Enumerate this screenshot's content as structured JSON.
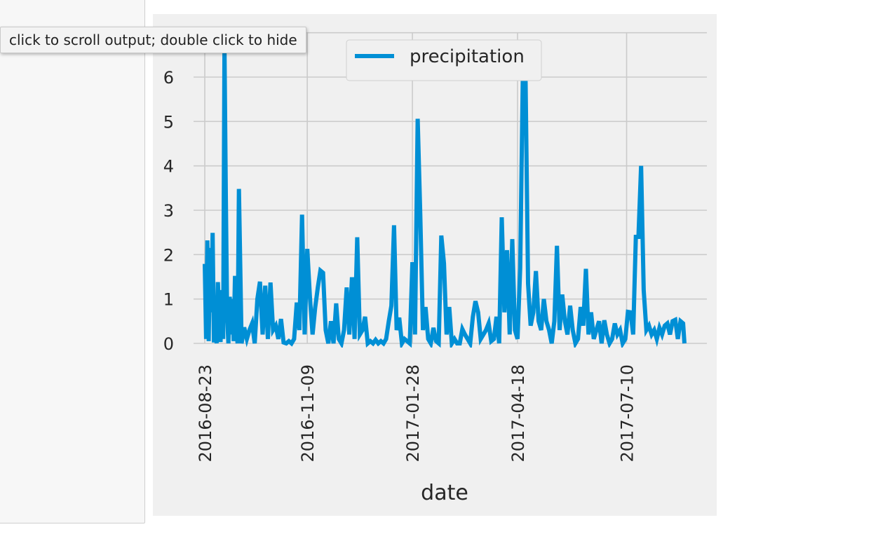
{
  "tooltip": {
    "text": "click to scroll output; double click to hide"
  },
  "colors": {
    "series": "#008fd5",
    "grid": "#cbcbcb",
    "figure_bg": "#f0f0f0",
    "text": "#262626"
  },
  "chart_data": {
    "type": "line",
    "xlabel": "date",
    "ylabel": "",
    "ylim": [
      0,
      7
    ],
    "xlim": [
      "2016-08-23",
      "2017-08-23"
    ],
    "yticks": [
      0,
      1,
      2,
      3,
      4,
      5,
      6,
      7
    ],
    "xticks": [
      "2016-08-23",
      "2016-11-09",
      "2017-01-28",
      "2017-04-18",
      "2017-07-10"
    ],
    "grid": true,
    "legend": {
      "location": "upper-center"
    },
    "series": [
      {
        "name": "precipitation",
        "x": [
          "2016-08-23",
          "2016-08-24",
          "2016-08-25",
          "2016-08-26",
          "2016-08-27",
          "2016-08-28",
          "2016-08-29",
          "2016-08-30",
          "2016-08-31",
          "2016-09-01",
          "2016-09-02",
          "2016-09-03",
          "2016-09-04",
          "2016-09-05",
          "2016-09-06",
          "2016-09-07",
          "2016-09-08",
          "2016-09-09",
          "2016-09-10",
          "2016-09-11",
          "2016-09-12",
          "2016-09-13",
          "2016-09-14",
          "2016-09-15",
          "2016-09-16",
          "2016-09-17",
          "2016-09-18",
          "2016-09-20",
          "2016-09-22",
          "2016-09-24",
          "2016-09-26",
          "2016-09-28",
          "2016-09-30",
          "2016-10-02",
          "2016-10-04",
          "2016-10-06",
          "2016-10-08",
          "2016-10-10",
          "2016-10-12",
          "2016-10-14",
          "2016-10-16",
          "2016-10-18",
          "2016-10-20",
          "2016-10-22",
          "2016-10-24",
          "2016-10-26",
          "2016-10-28",
          "2016-10-30",
          "2016-11-01",
          "2016-11-03",
          "2016-11-05",
          "2016-11-07",
          "2016-11-09",
          "2016-11-11",
          "2016-11-13",
          "2016-11-15",
          "2016-11-17",
          "2016-11-19",
          "2016-11-21",
          "2016-11-23",
          "2016-11-25",
          "2016-11-27",
          "2016-11-29",
          "2016-12-01",
          "2016-12-03",
          "2016-12-05",
          "2016-12-07",
          "2016-12-09",
          "2016-12-11",
          "2016-12-13",
          "2016-12-15",
          "2016-12-17",
          "2016-12-19",
          "2016-12-21",
          "2016-12-23",
          "2016-12-25",
          "2016-12-27",
          "2016-12-29",
          "2016-12-31",
          "2017-01-02",
          "2017-01-04",
          "2017-01-06",
          "2017-01-08",
          "2017-01-10",
          "2017-01-12",
          "2017-01-14",
          "2017-01-16",
          "2017-01-18",
          "2017-01-20",
          "2017-01-22",
          "2017-01-24",
          "2017-01-26",
          "2017-01-28",
          "2017-01-30",
          "2017-02-01",
          "2017-02-03",
          "2017-02-05",
          "2017-02-07",
          "2017-02-09",
          "2017-02-11",
          "2017-02-13",
          "2017-02-15",
          "2017-02-17",
          "2017-02-19",
          "2017-02-21",
          "2017-02-23",
          "2017-02-25",
          "2017-02-27",
          "2017-03-01",
          "2017-03-03",
          "2017-03-05",
          "2017-03-07",
          "2017-03-09",
          "2017-03-11",
          "2017-03-13",
          "2017-03-15",
          "2017-03-17",
          "2017-03-19",
          "2017-03-21",
          "2017-03-23",
          "2017-03-25",
          "2017-03-27",
          "2017-03-29",
          "2017-03-31",
          "2017-04-02",
          "2017-04-04",
          "2017-04-06",
          "2017-04-08",
          "2017-04-10",
          "2017-04-12",
          "2017-04-14",
          "2017-04-16",
          "2017-04-18",
          "2017-04-20",
          "2017-04-22",
          "2017-04-24",
          "2017-04-26",
          "2017-04-28",
          "2017-04-30",
          "2017-05-02",
          "2017-05-04",
          "2017-05-06",
          "2017-05-08",
          "2017-05-10",
          "2017-05-12",
          "2017-05-14",
          "2017-05-16",
          "2017-05-18",
          "2017-05-20",
          "2017-05-22",
          "2017-05-24",
          "2017-05-26",
          "2017-05-28",
          "2017-05-30",
          "2017-06-01",
          "2017-06-03",
          "2017-06-05",
          "2017-06-07",
          "2017-06-09",
          "2017-06-11",
          "2017-06-13",
          "2017-06-15",
          "2017-06-17",
          "2017-06-19",
          "2017-06-21",
          "2017-06-23",
          "2017-06-25",
          "2017-06-27",
          "2017-06-29",
          "2017-07-01",
          "2017-07-03",
          "2017-07-05",
          "2017-07-07",
          "2017-07-09",
          "2017-07-11",
          "2017-07-13",
          "2017-07-15",
          "2017-07-17",
          "2017-07-19",
          "2017-07-21",
          "2017-07-23",
          "2017-07-25",
          "2017-07-27",
          "2017-07-29",
          "2017-07-31",
          "2017-08-02",
          "2017-08-04",
          "2017-08-06",
          "2017-08-08",
          "2017-08-10",
          "2017-08-12",
          "2017-08-14",
          "2017-08-16",
          "2017-08-18",
          "2017-08-20",
          "2017-08-22",
          "2017-08-23"
        ],
        "y": [
          1.79,
          0.1,
          2.32,
          0.05,
          2.15,
          0.7,
          2.49,
          0.02,
          1.06,
          0.0,
          1.38,
          0.6,
          0.03,
          1.2,
          0.1,
          6.7,
          3.35,
          0.62,
          0.0,
          1.05,
          0.2,
          1.0,
          0.05,
          1.52,
          0.3,
          0.0,
          3.48,
          0.0,
          0.36,
          0.1,
          0.3,
          0.45,
          0.0,
          1.0,
          1.39,
          0.2,
          1.3,
          0.1,
          1.37,
          0.3,
          0.4,
          0.1,
          0.55,
          0.02,
          0.0,
          0.05,
          0.0,
          0.1,
          0.92,
          0.3,
          2.9,
          0.2,
          2.13,
          1.05,
          0.2,
          0.8,
          1.26,
          1.64,
          1.59,
          0.3,
          0.0,
          0.5,
          0.0,
          0.9,
          0.1,
          0.0,
          0.3,
          1.26,
          0.2,
          1.49,
          0.1,
          2.39,
          0.2,
          0.3,
          0.6,
          0.0,
          0.05,
          0.0,
          0.08,
          0.0,
          0.05,
          0.0,
          0.1,
          0.5,
          0.85,
          2.66,
          0.3,
          0.58,
          0.0,
          0.1,
          0.05,
          0.0,
          1.83,
          0.2,
          5.06,
          2.9,
          0.3,
          0.82,
          0.1,
          0.0,
          0.35,
          0.05,
          0.0,
          2.43,
          1.8,
          0.2,
          0.82,
          0.0,
          0.1,
          0.0,
          0.0,
          0.32,
          0.2,
          0.1,
          0.0,
          0.6,
          0.95,
          0.7,
          0.1,
          0.2,
          0.3,
          0.45,
          0.05,
          0.1,
          0.6,
          0.0,
          2.84,
          0.7,
          2.1,
          0.2,
          2.35,
          0.3,
          0.1,
          1.7,
          5.98,
          6.25,
          1.35,
          0.4,
          0.7,
          1.63,
          0.5,
          0.3,
          1.0,
          0.5,
          0.3,
          0.0,
          0.5,
          2.2,
          0.3,
          1.1,
          0.5,
          0.2,
          0.85,
          0.3,
          0.0,
          0.1,
          0.82,
          0.4,
          1.68,
          0.2,
          0.7,
          0.1,
          0.3,
          0.5,
          0.0,
          0.52,
          0.2,
          0.0,
          0.1,
          0.45,
          0.2,
          0.3,
          0.0,
          0.1,
          0.71,
          0.7,
          0.2,
          2.4,
          2.4,
          4.0,
          1.2,
          0.3,
          0.4,
          0.2,
          0.3,
          0.1,
          0.35,
          0.2,
          0.4,
          0.45,
          0.2,
          0.5,
          0.53,
          0.1,
          0.5,
          0.45,
          0.0
        ]
      }
    ]
  }
}
